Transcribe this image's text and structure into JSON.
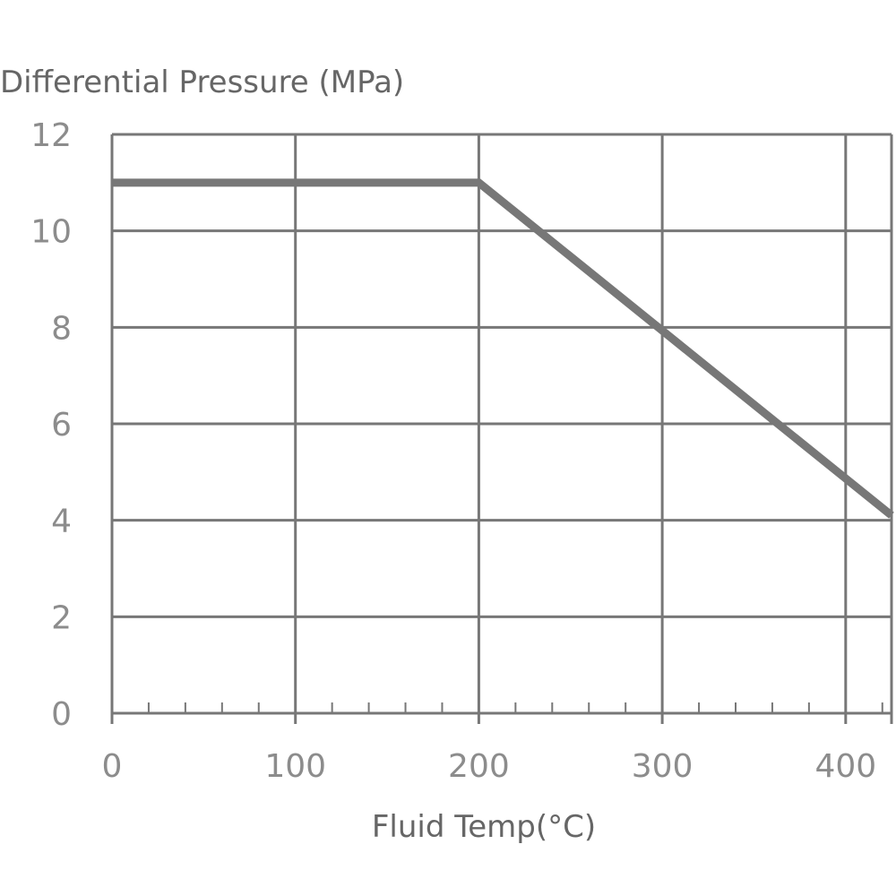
{
  "chart_data": {
    "type": "line",
    "title": "",
    "ylabel": "Differential Pressure (MPa)",
    "xlabel": "Fluid Temp(°C)",
    "xlim": [
      0,
      425
    ],
    "ylim": [
      0,
      12
    ],
    "x_ticks": [
      0,
      100,
      200,
      300,
      400
    ],
    "y_ticks": [
      0,
      2,
      4,
      6,
      8,
      10,
      12
    ],
    "x_minor_step": 20,
    "grid": true,
    "line_color": "#777777",
    "series": [
      {
        "x": [
          0,
          200,
          425
        ],
        "y": [
          11,
          11,
          4.1
        ]
      }
    ]
  }
}
